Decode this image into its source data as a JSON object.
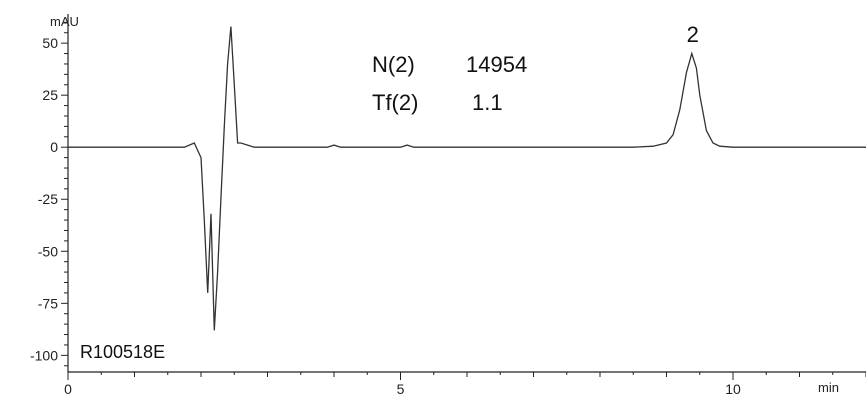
{
  "chart_data": {
    "type": "line",
    "ylabel": "mAU",
    "xlabel": "min",
    "xlim": [
      0,
      12.0
    ],
    "ylim": [
      -108,
      64
    ],
    "x_ticks": [
      0,
      5,
      10
    ],
    "y_ticks": [
      50,
      25,
      0,
      -25,
      -50,
      -75,
      -100
    ],
    "grid": false,
    "series": [
      {
        "x": [
          0.0,
          1.75,
          1.9,
          2.0,
          2.05,
          2.1,
          2.15,
          2.2,
          2.25,
          2.3,
          2.35,
          2.4,
          2.45,
          2.5,
          2.55,
          2.6,
          2.7,
          2.8,
          2.9,
          3.0,
          3.9,
          4.0,
          4.1,
          5.0,
          5.1,
          5.2,
          8.5,
          8.8,
          9.0,
          9.1,
          9.2,
          9.3,
          9.38,
          9.45,
          9.5,
          9.6,
          9.7,
          9.8,
          10.0,
          12.0
        ],
        "y": [
          0,
          0,
          2,
          -5,
          -35,
          -70,
          -32,
          -88,
          -60,
          -25,
          10,
          40,
          58,
          30,
          2,
          2,
          1,
          0,
          0,
          0,
          0,
          1,
          0,
          0,
          1,
          0,
          0,
          0.5,
          2,
          6,
          18,
          36,
          45,
          38,
          25,
          8,
          2,
          0.5,
          0,
          0
        ]
      }
    ],
    "peak_labels": [
      {
        "text": "2",
        "x": 9.38
      }
    ],
    "annotations": [
      {
        "label": "N(2)",
        "value": "14954"
      },
      {
        "label": "Tf(2)",
        "value": "1.1"
      }
    ],
    "sample_id": "R100518E"
  }
}
